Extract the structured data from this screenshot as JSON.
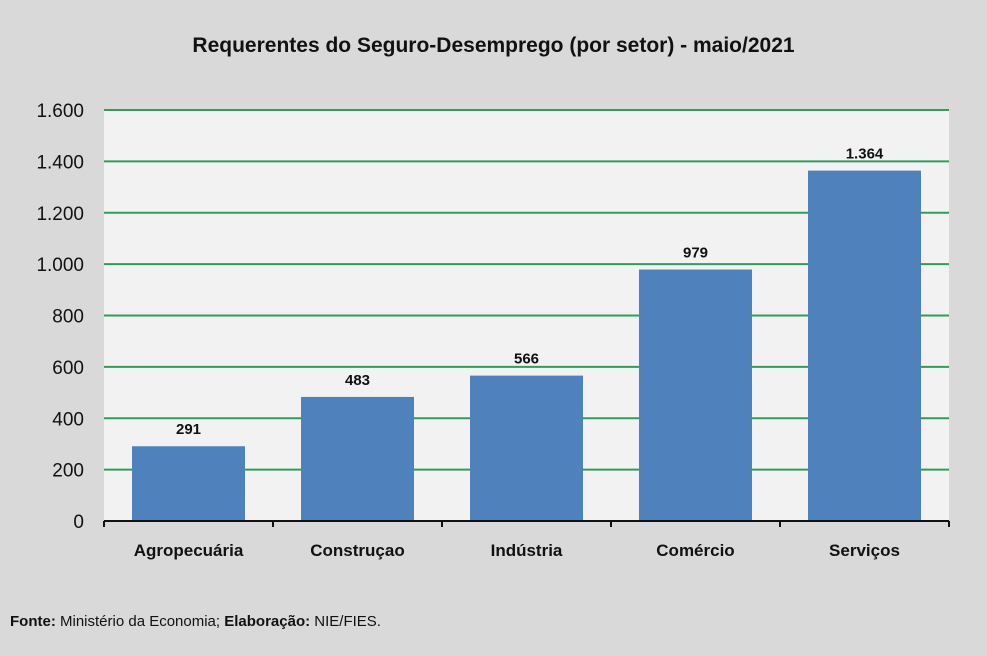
{
  "chart_data": {
    "type": "bar",
    "title": "Requerentes do Seguro-Desemprego (por setor) - maio/2021",
    "categories": [
      "Agropecuária",
      "Construçao",
      "Indústria",
      "Comércio",
      "Serviços"
    ],
    "values": [
      291,
      483,
      566,
      979,
      1364
    ],
    "value_labels": [
      "291",
      "483",
      "566",
      "979",
      "1.364"
    ],
    "xlabel": "",
    "ylabel": "",
    "ylim": [
      0,
      1600
    ],
    "yticks": [
      0,
      200,
      400,
      600,
      800,
      1000,
      1200,
      1400,
      1600
    ],
    "ytick_labels": [
      "0",
      "200",
      "400",
      "600",
      "800",
      "1.000",
      "1.200",
      "1.400",
      "1.600"
    ],
    "grid": true,
    "legend": "none",
    "colors": {
      "bar": "#4f81bd",
      "grid": "#2e9e5a",
      "plot_bg": "#f2f2f2",
      "page_bg": "#d9d9d9"
    }
  },
  "footer": {
    "source_label": "Fonte:",
    "source_text": " Ministério da Economia; ",
    "elab_label": "Elaboração:",
    "elab_text": " NIE/FIES."
  }
}
